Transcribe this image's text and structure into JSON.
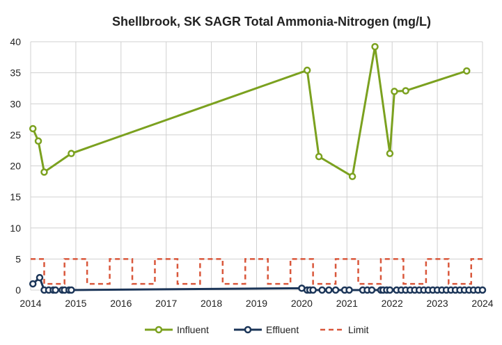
{
  "chart_data": {
    "type": "line",
    "title": "Shellbrook, SK SAGR Total Ammonia-Nitrogen (mg/L)",
    "xlabel": "",
    "ylabel": "",
    "xlim": [
      2014,
      2024
    ],
    "ylim": [
      0,
      40
    ],
    "x_ticks": [
      "2014",
      "2015",
      "2016",
      "2017",
      "2018",
      "2019",
      "2020",
      "2021",
      "2022",
      "2023",
      "2024"
    ],
    "y_ticks": [
      "0",
      "5",
      "10",
      "15",
      "20",
      "25",
      "30",
      "35",
      "40"
    ],
    "grid": true,
    "legend_position": "bottom",
    "series": [
      {
        "name": "Influent",
        "color": "#7ba11f",
        "style": "solid-marker",
        "x": [
          2014.05,
          2014.17,
          2014.3,
          2014.9,
          2020.12,
          2020.38,
          2021.12,
          2021.62,
          2021.95,
          2022.05,
          2022.3,
          2023.65
        ],
        "y": [
          26.0,
          24.0,
          19.0,
          22.0,
          35.4,
          21.5,
          18.3,
          39.2,
          22.0,
          32.0,
          32.1,
          35.3
        ]
      },
      {
        "name": "Effluent",
        "color": "#1b3558",
        "style": "solid-marker",
        "x": [
          2014.05,
          2014.2,
          2014.3,
          2014.4,
          2014.5,
          2014.55,
          2014.7,
          2014.75,
          2014.85,
          2014.9,
          2020.0,
          2020.12,
          2020.18,
          2020.25,
          2020.45,
          2020.6,
          2020.75,
          2020.95,
          2021.05,
          2021.35,
          2021.45,
          2021.55,
          2021.75,
          2021.8,
          2021.88,
          2021.95,
          2022.1,
          2022.2,
          2022.3,
          2022.4,
          2022.5,
          2022.6,
          2022.7,
          2022.8,
          2022.9,
          2023.0,
          2023.1,
          2023.2,
          2023.3,
          2023.4,
          2023.5,
          2023.6,
          2023.7,
          2023.8,
          2023.9,
          2024.0
        ],
        "y": [
          1.0,
          2.0,
          0.0,
          0.0,
          0.0,
          0.0,
          0.0,
          0.0,
          0.0,
          0.0,
          0.3,
          0.0,
          0.0,
          0.0,
          0.0,
          0.0,
          0.0,
          0.0,
          0.0,
          0.0,
          0.0,
          0.0,
          0.0,
          0.0,
          0.0,
          0.0,
          0.0,
          0.0,
          0.0,
          0.0,
          0.0,
          0.0,
          0.0,
          0.0,
          0.0,
          0.0,
          0.0,
          0.0,
          0.0,
          0.0,
          0.0,
          0.0,
          0.0,
          0.0,
          0.0,
          0.0
        ]
      },
      {
        "name": "Limit",
        "color": "#d9573b",
        "style": "dashed",
        "x": [
          2014.0,
          2014.3,
          2014.3,
          2014.75,
          2014.75,
          2015.25,
          2015.25,
          2015.75,
          2015.75,
          2016.25,
          2016.25,
          2016.75,
          2016.75,
          2017.25,
          2017.25,
          2017.75,
          2017.75,
          2018.25,
          2018.25,
          2018.75,
          2018.75,
          2019.25,
          2019.25,
          2019.75,
          2019.75,
          2020.25,
          2020.25,
          2020.75,
          2020.75,
          2021.25,
          2021.25,
          2021.75,
          2021.75,
          2022.25,
          2022.25,
          2022.75,
          2022.75,
          2023.25,
          2023.25,
          2023.75,
          2023.75,
          2024.0
        ],
        "y": [
          5,
          5,
          1,
          1,
          5,
          5,
          1,
          1,
          5,
          5,
          1,
          1,
          5,
          5,
          1,
          1,
          5,
          5,
          1,
          1,
          5,
          5,
          1,
          1,
          5,
          5,
          1,
          1,
          5,
          5,
          1,
          1,
          5,
          5,
          1,
          1,
          5,
          5,
          1,
          1,
          5,
          5
        ]
      }
    ]
  }
}
